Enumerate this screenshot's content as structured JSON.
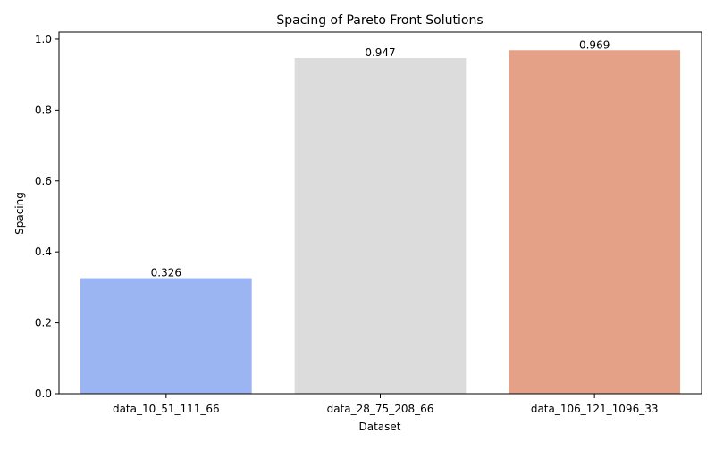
{
  "chart_data": {
    "type": "bar",
    "title": "Spacing of Pareto Front Solutions",
    "xlabel": "Dataset",
    "ylabel": "Spacing",
    "categories": [
      "data_10_51_111_66",
      "data_28_75_208_66",
      "data_106_121_1096_33"
    ],
    "values": [
      0.326,
      0.947,
      0.969
    ],
    "value_labels": [
      "0.326",
      "0.947",
      "0.969"
    ],
    "colors": [
      "#9bb5f2",
      "#dcdcdc",
      "#e4a188"
    ],
    "ylim": [
      0,
      1.02
    ],
    "yticks": [
      0.0,
      0.2,
      0.4,
      0.6,
      0.8,
      1.0
    ],
    "ytick_labels": [
      "0.0",
      "0.2",
      "0.4",
      "0.6",
      "0.8",
      "1.0"
    ],
    "grid": false,
    "legend": "none"
  }
}
